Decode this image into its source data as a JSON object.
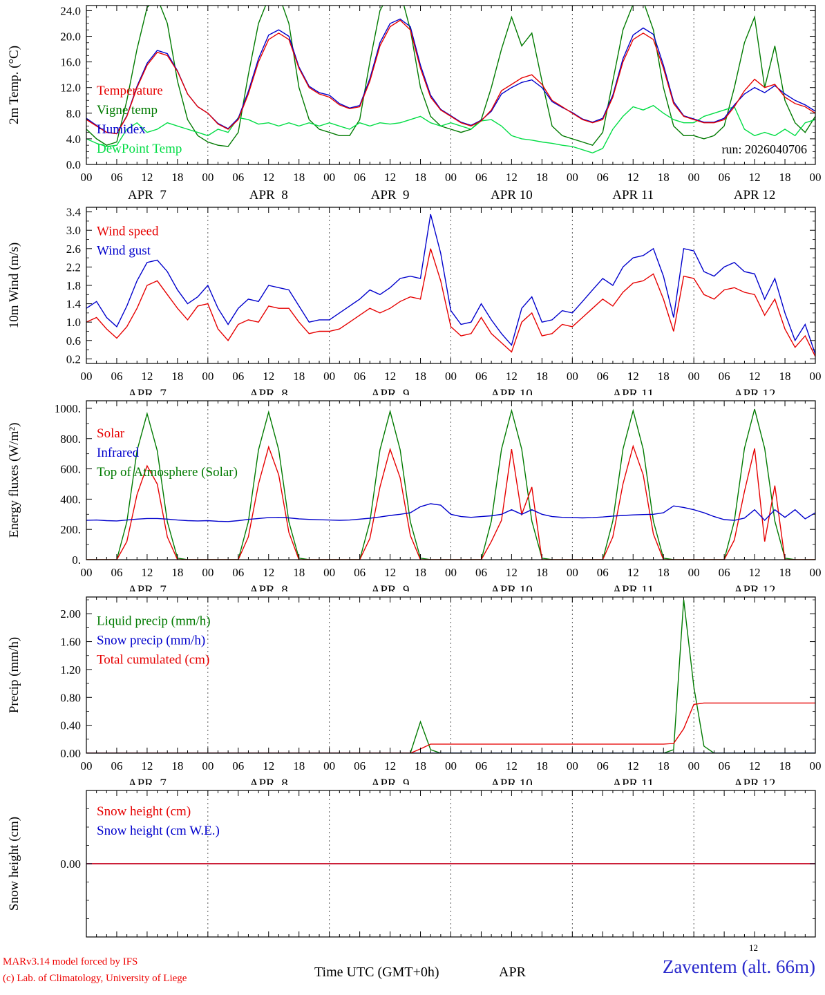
{
  "colors": {
    "red": "#e60000",
    "blue": "#0000cc",
    "green_dark": "#007a00",
    "green_bright": "#00dd44",
    "axis": "#000000",
    "credit_red": "#ee0000",
    "station_blue": "#2929cc"
  },
  "time_axis": {
    "hours_total": 144,
    "major_step_hours": 6,
    "minor_step_hours": 2,
    "tick_label_cycle": [
      "00",
      "06",
      "12",
      "18"
    ],
    "day_labels": [
      "APR  7",
      "APR  8",
      "APR  9",
      "APR 10",
      "APR 11",
      "APR 12"
    ]
  },
  "chart_data": [
    {
      "id": "temperature",
      "type": "line",
      "ylabel": "2m Temp. (°C)",
      "ylim": [
        0,
        24.8
      ],
      "ytick_values": [
        0,
        4,
        8,
        12,
        16,
        20,
        24
      ],
      "ytick_labels": [
        "0.0",
        "4.0",
        "8.0",
        "12.0",
        "16.0",
        "20.0",
        "24.0"
      ],
      "y_minor_step": 1,
      "x_step_hours": 2,
      "legend": [
        {
          "label": "Temperature",
          "color": "red"
        },
        {
          "label": "Vigne temp",
          "color": "green_dark"
        },
        {
          "label": "Humidex",
          "color": "blue"
        },
        {
          "label": "DewPoint Temp",
          "color": "green_bright"
        }
      ],
      "annotation": {
        "text": "run: 2026040706"
      },
      "series": [
        {
          "name": "Vigne temp",
          "color": "green_dark",
          "values": [
            5.5,
            4.0,
            3.0,
            3.5,
            10.0,
            18.0,
            24.5,
            26.0,
            22.0,
            13.0,
            7.0,
            4.5,
            3.5,
            3.0,
            2.8,
            5.0,
            14.0,
            22.0,
            26.0,
            26.5,
            22.0,
            12.0,
            7.0,
            5.5,
            5.0,
            4.5,
            4.5,
            7.0,
            16.0,
            24.0,
            27.0,
            27.0,
            21.0,
            12.0,
            7.5,
            6.0,
            5.5,
            5.0,
            5.5,
            7.0,
            12.0,
            18.0,
            23.0,
            18.5,
            20.5,
            13.0,
            6.0,
            4.5,
            4.0,
            3.5,
            3.0,
            5.0,
            13.0,
            21.0,
            25.0,
            25.5,
            21.0,
            12.0,
            6.0,
            4.5,
            4.5,
            4.0,
            4.5,
            6.0,
            12.0,
            19.0,
            23.0,
            12.0,
            18.5,
            10.0,
            6.5,
            5.0,
            7.5
          ]
        },
        {
          "name": "DewPoint Temp",
          "color": "green_bright",
          "values": [
            4.0,
            3.3,
            2.8,
            3.0,
            5.5,
            6.5,
            5.0,
            5.5,
            6.5,
            6.0,
            5.5,
            5.0,
            4.5,
            5.5,
            5.0,
            7.3,
            7.0,
            6.3,
            6.5,
            6.0,
            6.5,
            6.0,
            6.5,
            6.0,
            6.5,
            6.0,
            5.5,
            6.5,
            6.0,
            6.5,
            6.3,
            6.5,
            7.0,
            7.5,
            6.5,
            6.0,
            6.5,
            6.0,
            5.5,
            6.8,
            7.0,
            6.0,
            4.5,
            4.0,
            3.8,
            3.5,
            3.3,
            3.0,
            2.8,
            2.3,
            1.8,
            2.5,
            5.5,
            7.5,
            9.0,
            8.5,
            9.2,
            8.0,
            7.0,
            6.5,
            6.5,
            7.5,
            8.0,
            8.5,
            9.0,
            5.5,
            4.5,
            5.0,
            4.5,
            5.5,
            4.5,
            6.5,
            7.0
          ]
        },
        {
          "name": "Humidex",
          "color": "blue",
          "values": [
            7.2,
            6.1,
            5.0,
            4.8,
            7.6,
            12.2,
            15.8,
            17.8,
            17.3,
            14.6,
            11.0,
            9.0,
            8.0,
            6.4,
            5.6,
            7.2,
            11.4,
            16.5,
            20.2,
            21.0,
            20.0,
            15.2,
            12.2,
            11.2,
            10.8,
            9.5,
            8.8,
            9.2,
            13.4,
            19.0,
            22.0,
            22.7,
            21.5,
            15.5,
            10.8,
            8.6,
            7.6,
            6.6,
            6.1,
            6.9,
            8.3,
            11.0,
            12.0,
            12.8,
            13.2,
            12.0,
            9.8,
            8.9,
            8.1,
            7.1,
            6.6,
            7.2,
            10.8,
            16.5,
            20.2,
            21.3,
            20.3,
            15.5,
            9.8,
            7.6,
            7.1,
            6.6,
            6.6,
            7.2,
            9.3,
            11.0,
            12.0,
            11.2,
            12.3,
            11.0,
            10.0,
            9.3,
            8.3
          ]
        },
        {
          "name": "Temperature",
          "color": "red",
          "values": [
            7.0,
            6.0,
            5.0,
            4.8,
            7.5,
            12.0,
            15.5,
            17.5,
            17.0,
            14.5,
            11.0,
            9.0,
            8.0,
            6.3,
            5.5,
            7.0,
            11.0,
            16.0,
            19.5,
            20.5,
            19.5,
            15.0,
            12.0,
            11.0,
            10.5,
            9.3,
            8.7,
            9.0,
            13.0,
            18.5,
            21.5,
            22.5,
            21.0,
            15.0,
            10.5,
            8.5,
            7.5,
            6.5,
            6.0,
            6.8,
            8.5,
            11.5,
            12.5,
            13.5,
            14.0,
            12.5,
            10.0,
            9.0,
            8.0,
            7.0,
            6.5,
            7.0,
            10.5,
            16.0,
            19.5,
            20.5,
            19.5,
            15.0,
            9.5,
            7.5,
            7.0,
            6.5,
            6.5,
            7.0,
            9.0,
            11.5,
            13.3,
            12.0,
            12.5,
            10.5,
            9.5,
            9.0,
            8.0
          ]
        }
      ]
    },
    {
      "id": "wind",
      "type": "line",
      "ylabel": "10m Wind (m/s)",
      "ylim": [
        0.1,
        3.5
      ],
      "ytick_values": [
        0.2,
        0.6,
        1.0,
        1.4,
        1.8,
        2.2,
        2.6,
        3.0,
        3.4
      ],
      "ytick_labels": [
        "0.2",
        "0.6",
        "1.0",
        "1.4",
        "1.8",
        "2.2",
        "2.6",
        "3.0",
        "3.4"
      ],
      "y_minor_step": 0.2,
      "x_step_hours": 2,
      "legend": [
        {
          "label": "Wind speed",
          "color": "red"
        },
        {
          "label": "Wind gust",
          "color": "blue"
        }
      ],
      "series": [
        {
          "name": "Wind gust",
          "color": "blue",
          "values": [
            1.3,
            1.45,
            1.1,
            0.9,
            1.35,
            1.9,
            2.3,
            2.35,
            2.1,
            1.7,
            1.4,
            1.55,
            1.8,
            1.3,
            0.95,
            1.3,
            1.5,
            1.45,
            1.8,
            1.75,
            1.7,
            1.35,
            1.0,
            1.05,
            1.05,
            1.2,
            1.35,
            1.5,
            1.7,
            1.6,
            1.75,
            1.95,
            2.0,
            1.95,
            3.35,
            2.5,
            1.25,
            0.95,
            1.0,
            1.4,
            1.05,
            0.75,
            0.5,
            1.3,
            1.55,
            1.0,
            1.05,
            1.25,
            1.2,
            1.45,
            1.7,
            1.95,
            1.8,
            2.2,
            2.4,
            2.45,
            2.6,
            2.0,
            1.1,
            2.6,
            2.55,
            2.1,
            2.0,
            2.2,
            2.3,
            2.1,
            2.05,
            1.5,
            1.95,
            1.2,
            0.6,
            0.95,
            0.3
          ]
        },
        {
          "name": "Wind speed",
          "color": "red",
          "values": [
            1.0,
            1.1,
            0.85,
            0.65,
            0.9,
            1.3,
            1.8,
            1.9,
            1.6,
            1.3,
            1.05,
            1.35,
            1.4,
            0.85,
            0.6,
            0.95,
            1.05,
            1.0,
            1.35,
            1.3,
            1.3,
            1.0,
            0.75,
            0.8,
            0.8,
            0.85,
            1.0,
            1.15,
            1.3,
            1.2,
            1.3,
            1.45,
            1.55,
            1.5,
            2.6,
            1.9,
            0.9,
            0.7,
            0.75,
            1.1,
            0.75,
            0.55,
            0.35,
            1.0,
            1.2,
            0.7,
            0.75,
            0.95,
            0.9,
            1.1,
            1.3,
            1.5,
            1.35,
            1.65,
            1.85,
            1.9,
            2.05,
            1.5,
            0.8,
            2.0,
            1.95,
            1.6,
            1.5,
            1.7,
            1.75,
            1.65,
            1.6,
            1.15,
            1.5,
            0.85,
            0.45,
            0.7,
            0.25
          ]
        }
      ]
    },
    {
      "id": "energy",
      "type": "line",
      "ylabel": "Energy fluxes (W/m²)",
      "ylim": [
        0,
        1050
      ],
      "ytick_values": [
        0,
        200,
        400,
        600,
        800,
        1000
      ],
      "ytick_labels": [
        "0.",
        "200.",
        "400.",
        "600.",
        "800.",
        "1000."
      ],
      "y_minor_step": 100,
      "x_step_hours": 2,
      "legend": [
        {
          "label": "Solar",
          "color": "red"
        },
        {
          "label": "Infrared",
          "color": "blue"
        },
        {
          "label": "Top of Atmosphere (Solar)",
          "color": "green_dark"
        }
      ],
      "series": [
        {
          "name": "Top of Atmosphere (Solar)",
          "color": "green_dark",
          "values": [
            0,
            0,
            0,
            0,
            250,
            720,
            965,
            720,
            250,
            10,
            0,
            0,
            0,
            0,
            0,
            0,
            250,
            725,
            975,
            725,
            250,
            10,
            0,
            0,
            0,
            0,
            0,
            0,
            250,
            725,
            980,
            725,
            250,
            10,
            0,
            0,
            0,
            0,
            0,
            0,
            255,
            730,
            985,
            730,
            255,
            10,
            0,
            0,
            0,
            0,
            0,
            0,
            255,
            730,
            985,
            730,
            255,
            10,
            0,
            0,
            0,
            0,
            0,
            0,
            255,
            735,
            995,
            735,
            255,
            10,
            0,
            0,
            0
          ]
        },
        {
          "name": "Solar",
          "color": "red",
          "values": [
            0,
            0,
            0,
            0,
            120,
            430,
            620,
            500,
            150,
            0,
            0,
            0,
            0,
            0,
            0,
            0,
            150,
            500,
            745,
            560,
            180,
            0,
            0,
            0,
            0,
            0,
            0,
            0,
            140,
            480,
            730,
            540,
            160,
            0,
            0,
            0,
            0,
            0,
            0,
            0,
            120,
            260,
            730,
            300,
            480,
            0,
            0,
            0,
            0,
            0,
            0,
            0,
            150,
            500,
            750,
            560,
            170,
            0,
            0,
            0,
            0,
            0,
            0,
            0,
            130,
            450,
            735,
            120,
            490,
            0,
            0,
            0,
            0
          ]
        },
        {
          "name": "Infrared",
          "color": "blue",
          "values": [
            260,
            262,
            258,
            256,
            262,
            268,
            272,
            272,
            268,
            262,
            258,
            256,
            258,
            254,
            252,
            258,
            266,
            272,
            278,
            280,
            276,
            270,
            266,
            264,
            262,
            260,
            262,
            268,
            274,
            282,
            292,
            300,
            310,
            350,
            370,
            360,
            300,
            285,
            280,
            285,
            290,
            300,
            330,
            300,
            330,
            300,
            285,
            280,
            278,
            276,
            278,
            282,
            288,
            292,
            296,
            298,
            300,
            310,
            355,
            345,
            330,
            310,
            285,
            265,
            260,
            275,
            330,
            260,
            330,
            280,
            330,
            270,
            310
          ]
        }
      ]
    },
    {
      "id": "precip",
      "type": "line",
      "ylabel": "Precip (mm/h)",
      "ylim": [
        0,
        2.24
      ],
      "ytick_values": [
        0,
        0.4,
        0.8,
        1.2,
        1.6,
        2.0
      ],
      "ytick_labels": [
        "0.00",
        "0.40",
        "0.80",
        "1.20",
        "1.60",
        "2.00"
      ],
      "y_minor_step": 0.2,
      "x_step_hours": 2,
      "legend": [
        {
          "label": "Liquid precip (mm/h)",
          "color": "green_dark"
        },
        {
          "label": "Snow precip (mm/h)",
          "color": "blue"
        },
        {
          "label": "Total cumulated (cm)",
          "color": "red"
        }
      ],
      "series": [
        {
          "name": "Liquid precip",
          "color": "green_dark",
          "values": [
            0,
            0,
            0,
            0,
            0,
            0,
            0,
            0,
            0,
            0,
            0,
            0,
            0,
            0,
            0,
            0,
            0,
            0,
            0,
            0,
            0,
            0,
            0,
            0,
            0,
            0,
            0,
            0,
            0,
            0,
            0,
            0,
            0,
            0.45,
            0.05,
            0,
            0,
            0,
            0,
            0,
            0,
            0,
            0,
            0,
            0,
            0,
            0,
            0,
            0,
            0,
            0,
            0,
            0,
            0,
            0,
            0,
            0,
            0,
            0.05,
            2.2,
            0.95,
            0.1,
            0,
            0,
            0,
            0,
            0,
            0,
            0,
            0,
            0,
            0,
            0
          ]
        },
        {
          "name": "Snow precip",
          "color": "blue",
          "constant": 0
        },
        {
          "name": "Total cumulated",
          "color": "red",
          "values": [
            0,
            0,
            0,
            0,
            0,
            0,
            0,
            0,
            0,
            0,
            0,
            0,
            0,
            0,
            0,
            0,
            0,
            0,
            0,
            0,
            0,
            0,
            0,
            0,
            0,
            0,
            0,
            0,
            0,
            0,
            0,
            0,
            0,
            0.06,
            0.13,
            0.13,
            0.13,
            0.13,
            0.13,
            0.13,
            0.13,
            0.13,
            0.13,
            0.13,
            0.13,
            0.13,
            0.13,
            0.13,
            0.13,
            0.13,
            0.13,
            0.13,
            0.13,
            0.13,
            0.13,
            0.13,
            0.13,
            0.13,
            0.14,
            0.35,
            0.7,
            0.72,
            0.72,
            0.72,
            0.72,
            0.72,
            0.72,
            0.72,
            0.72,
            0.72,
            0.72,
            0.72,
            0.72
          ]
        }
      ]
    },
    {
      "id": "snow",
      "type": "line",
      "ylabel": "Snow height (cm)",
      "ylim": [
        -1,
        1
      ],
      "ytick_values": [
        0
      ],
      "ytick_labels": [
        "0.00"
      ],
      "y_minor_step": 0.25,
      "x_step_hours": 2,
      "legend": [
        {
          "label": "Snow height (cm)",
          "color": "red"
        },
        {
          "label": "Snow height (cm W.E.)",
          "color": "blue"
        }
      ],
      "series": [
        {
          "name": "Snow height (cm W.E.)",
          "color": "blue",
          "constant": 0
        },
        {
          "name": "Snow height (cm)",
          "color": "red",
          "constant": 0
        }
      ]
    }
  ],
  "footer": {
    "credit_line1": "MARv3.14 model forced by IFS",
    "credit_line2": "(c) Lab. of Climatology, University of Liege",
    "xlabel": "Time UTC (GMT+0h)",
    "month_label": "APR",
    "stray_tick": "12",
    "station": "Zaventem (alt. 66m)"
  }
}
